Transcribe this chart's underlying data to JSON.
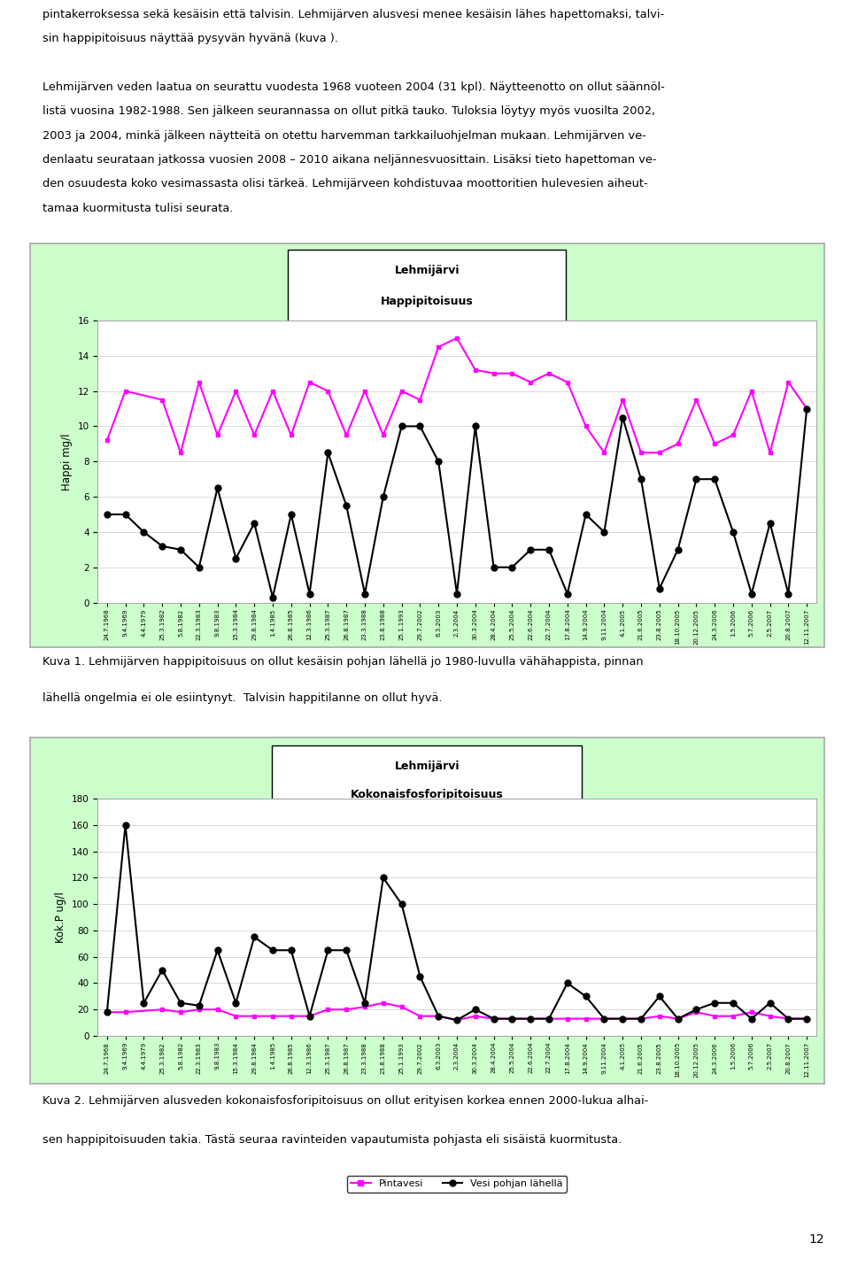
{
  "page_bg": "#ffffff",
  "chart_bg": "#ccffcc",
  "plot_bg": "#ffffff",
  "text_color": "#000000",
  "header_text": [
    "pintakerroksessa sekä kesäisin että talvisin. Lehmijärven alusvesi menee kesäisin lähes hapettomaksi, talvi-",
    "sin happipitoisuus näyttää pysyvän hyvänä (kuva ).",
    "",
    "Lehmijärven veden laatua on seurattu vuodesta 1968 vuoteen 2004 (31 kpl). Näytteenotto on ollut säännöl-",
    "listä vuosina 1982-1988. Sen jälkeen seurannassa on ollut pitkä tauko. Tuloksia löytyy myös vuosilta 2002,",
    "2003 ja 2004, minkä jälkeen näytteitä on otettu harvemman tarkkailuohjelman mukaan. Lehmijärven ve-",
    "denlaatu seurataan jatkossa vuosien 2008 – 2010 aikana neljännesvuosittain. Lisäksi tieto hapettoman ve-",
    "den osuudesta koko vesimassasta olisi tärkeä. Lehmijärveen kohdistuvaa moottoritien hulevesien aiheut-",
    "tamaa kuormitusta tulisi seurata."
  ],
  "caption1_line1": "Kuva 1. Lehmijärven happipitoisuus on ollut kesäisin pohjan lähellä jo 1980-luvulla vähähappista, pinnan",
  "caption1_line2": "lähellä ongelmia ei ole esiintynyt.  Talvisin happitilanne on ollut hyvä.",
  "caption2_line1": "Kuva 2. Lehmijärven alusveden kokonaisfosforipitoisuus on ollut erityisen korkea ennen 2000-lukua alhai-",
  "caption2_line2": "sen happipitoisuuden takia. Tästä seuraa ravinteiden vapautumista pohjasta eli sisäistä kuormitusta.",
  "page_number": "12",
  "chart1": {
    "title_line1": "Lehmijärvi",
    "title_line2": "Happipitoisuus",
    "ylabel": "Happi mg/l",
    "ylim": [
      0,
      16
    ],
    "yticks": [
      0,
      2,
      4,
      6,
      8,
      10,
      12,
      14,
      16
    ],
    "x_labels": [
      "24.7.1968",
      "9.4.1969",
      "4.4.1979",
      "25.3.1982",
      "5.8.1982",
      "22.3.1983",
      "9.8.1983",
      "15.3.1984",
      "29.8.1984",
      "1.4.1985",
      "26.8.1985",
      "12.3.1986",
      "25.3.1987",
      "26.8.1987",
      "23.3.1988",
      "23.8.1988",
      "25.1.1993",
      "29.7.2002",
      "6.3.2003",
      "2.3.2004",
      "30.3.2004",
      "28.4.2004",
      "25.5.2004",
      "22.6.2004",
      "22.7.2004",
      "17.8.2004",
      "14.9.2004",
      "9.11.2004",
      "4.1.2005",
      "21.6.2005",
      "23.8.2005",
      "18.10.2005",
      "20.12.2005",
      "24.3.2006",
      "1.5.2006",
      "5.7.2006",
      "2.5.2007",
      "20.8.2007",
      "12.11.2007"
    ],
    "surface_values": [
      9.2,
      12.0,
      null,
      11.5,
      8.5,
      12.5,
      9.5,
      12.0,
      9.5,
      12.0,
      9.5,
      12.5,
      12.0,
      9.5,
      12.0,
      9.5,
      12.0,
      11.5,
      14.5,
      15.0,
      13.2,
      13.0,
      13.0,
      12.5,
      13.0,
      12.5,
      10.0,
      8.5,
      11.5,
      8.5,
      8.5,
      9.0,
      11.5,
      9.0,
      9.5,
      12.0,
      8.5,
      12.5,
      11.0
    ],
    "bottom_values": [
      5.0,
      5.0,
      4.0,
      3.2,
      3.0,
      2.0,
      6.5,
      2.5,
      4.5,
      0.3,
      5.0,
      0.5,
      8.5,
      5.5,
      0.5,
      6.0,
      10.0,
      10.0,
      8.0,
      0.5,
      10.0,
      2.0,
      2.0,
      3.0,
      3.0,
      0.5,
      5.0,
      4.0,
      10.5,
      7.0,
      0.8,
      3.0,
      7.0,
      7.0,
      4.0,
      0.5,
      4.5,
      0.5,
      11.0
    ],
    "surface_color": "#ff00ff",
    "bottom_color": "#000000",
    "legend_labels": [
      "Pintavesi",
      "Vesi pohjan lähellä"
    ]
  },
  "chart2": {
    "title_line1": "Lehmijärvi",
    "title_line2": "Kokonaisfosforipitoisuus",
    "ylabel": "Kok.P ug/l",
    "ylim": [
      0,
      180
    ],
    "yticks": [
      0,
      20,
      40,
      60,
      80,
      100,
      120,
      140,
      160,
      180
    ],
    "x_labels": [
      "24.7.1968",
      "9.4.1969",
      "4.4.1979",
      "25.3.1982",
      "5.8.1982",
      "22.3.1983",
      "9.8.1983",
      "15.3.1984",
      "29.8.1984",
      "1.4.1985",
      "26.8.1985",
      "12.3.1986",
      "25.3.1987",
      "26.8.1987",
      "23.3.1988",
      "23.8.1988",
      "25.1.1993",
      "29.7.2002",
      "6.3.2003",
      "2.3.2004",
      "30.3.2004",
      "28.4.2004",
      "25.5.2004",
      "22.6.2004",
      "22.7.2004",
      "17.8.2004",
      "14.9.2004",
      "9.11.2004",
      "4.1.2005",
      "21.6.2005",
      "23.8.2005",
      "18.10.2005",
      "20.12.2005",
      "24.3.2006",
      "1.5.2006",
      "5.7.2006",
      "2.5.2007",
      "20.8.2007",
      "12.11.2007"
    ],
    "surface_values": [
      18,
      18,
      null,
      20,
      18,
      20,
      20,
      15,
      15,
      15,
      15,
      15,
      20,
      20,
      22,
      25,
      22,
      15,
      15,
      12,
      15,
      13,
      13,
      13,
      13,
      13,
      13,
      13,
      13,
      13,
      15,
      13,
      18,
      15,
      15,
      18,
      15,
      13,
      13
    ],
    "bottom_values": [
      18,
      160,
      25,
      50,
      25,
      23,
      65,
      25,
      75,
      65,
      65,
      15,
      65,
      65,
      25,
      120,
      100,
      45,
      15,
      12,
      20,
      13,
      13,
      13,
      13,
      40,
      30,
      13,
      13,
      13,
      30,
      13,
      20,
      25,
      25,
      13,
      25,
      13,
      13
    ],
    "surface_color": "#ff00ff",
    "bottom_color": "#000000",
    "legend_labels": [
      "Pintavesi",
      "Vesi pohjan lähellä"
    ]
  }
}
